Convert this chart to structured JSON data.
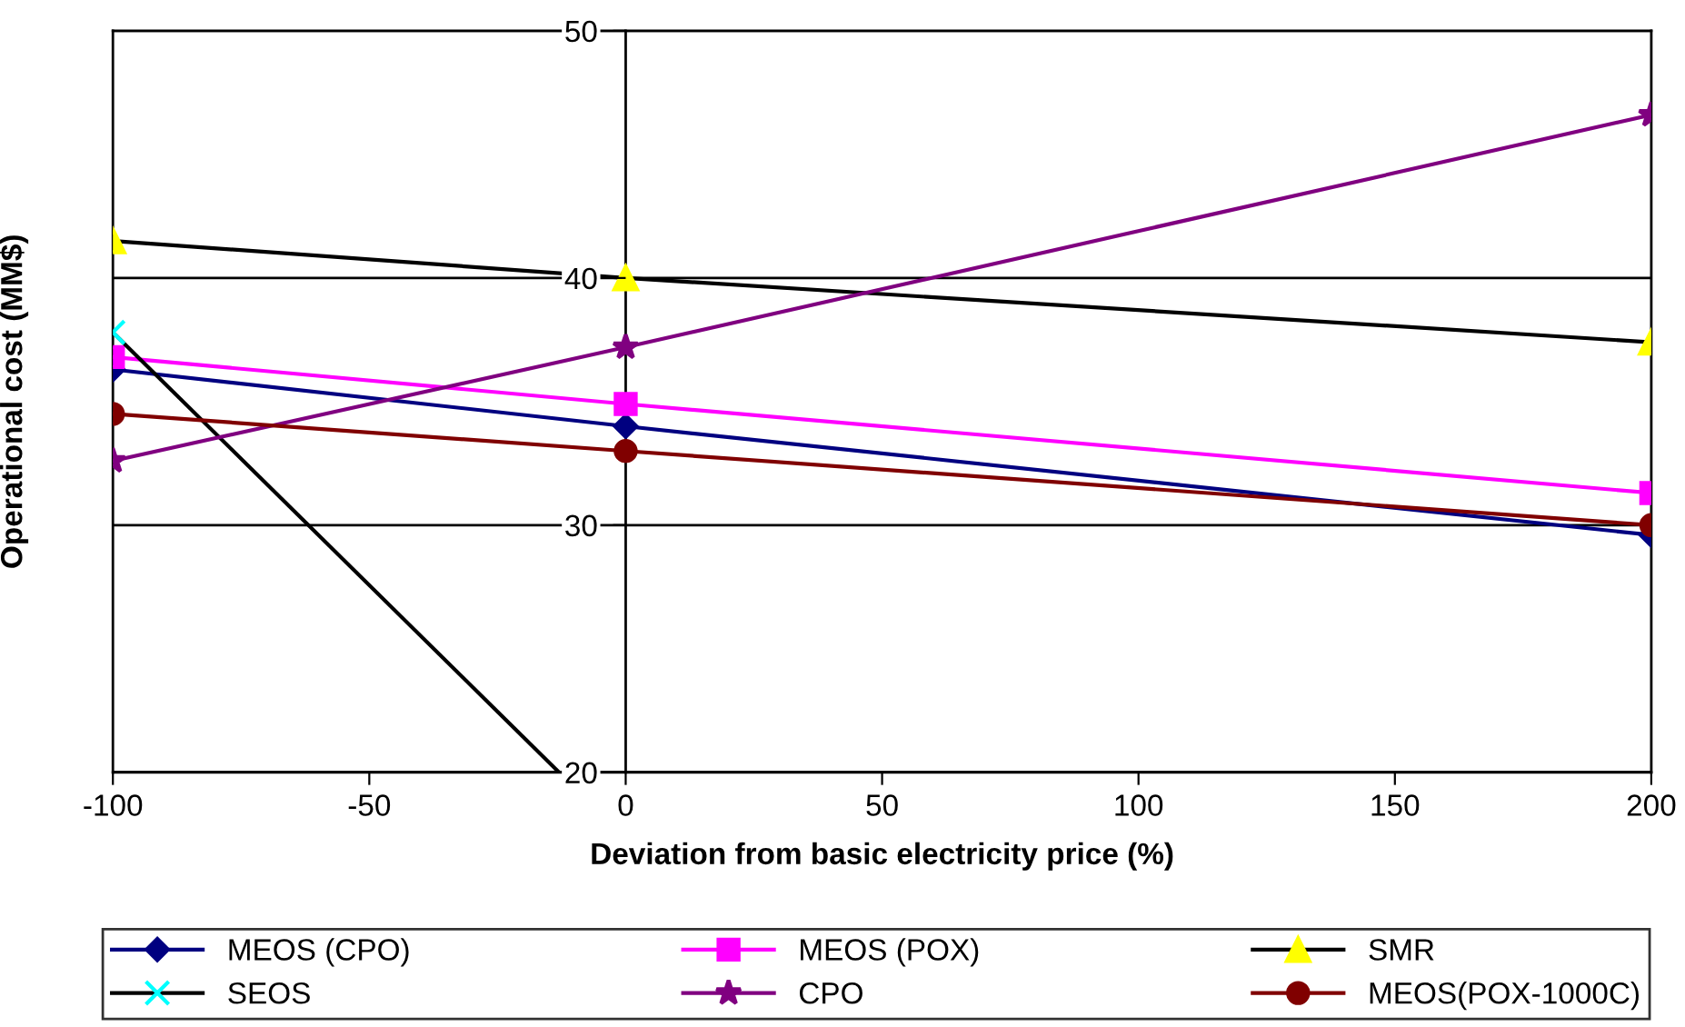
{
  "chart_data": {
    "type": "line",
    "xlabel": "Deviation from basic electricity price (%)",
    "ylabel": "Operational cost (MM$)",
    "x": [
      -100,
      0,
      200
    ],
    "series": [
      {
        "name": "MEOS (CPO)",
        "color": "#000080",
        "marker": "diamond",
        "values": [
          36.3,
          34.0,
          29.6
        ]
      },
      {
        "name": "MEOS (POX)",
        "color": "#ff00ff",
        "marker": "square",
        "values": [
          36.8,
          34.9,
          31.3
        ]
      },
      {
        "name": "SMR",
        "color": "#000000",
        "colors": [
          "#ffff00",
          "#ffff00",
          "#ffff00"
        ],
        "marker": "triangle",
        "values": [
          41.5,
          40.0,
          37.4
        ]
      },
      {
        "name": "SEOS",
        "color": "#000000",
        "colors": [
          "#00ffff",
          null
        ],
        "marker": "cross",
        "x": [
          -100,
          -13
        ],
        "values": [
          37.8,
          20.0
        ]
      },
      {
        "name": "CPO",
        "color": "#800080",
        "marker": "star",
        "values": [
          32.6,
          37.2,
          46.6
        ]
      },
      {
        "name": "MEOS(POX-1000C)",
        "color": "#800000",
        "marker": "circle",
        "values": [
          34.5,
          33.0,
          30.0
        ]
      }
    ],
    "xlim": [
      -100,
      200
    ],
    "xticks": [
      -100,
      -50,
      0,
      50,
      100,
      150,
      200
    ],
    "ylim": [
      20,
      50
    ],
    "yticks": [
      20,
      30,
      40,
      50
    ],
    "grid": "y",
    "legend": "bottom"
  }
}
